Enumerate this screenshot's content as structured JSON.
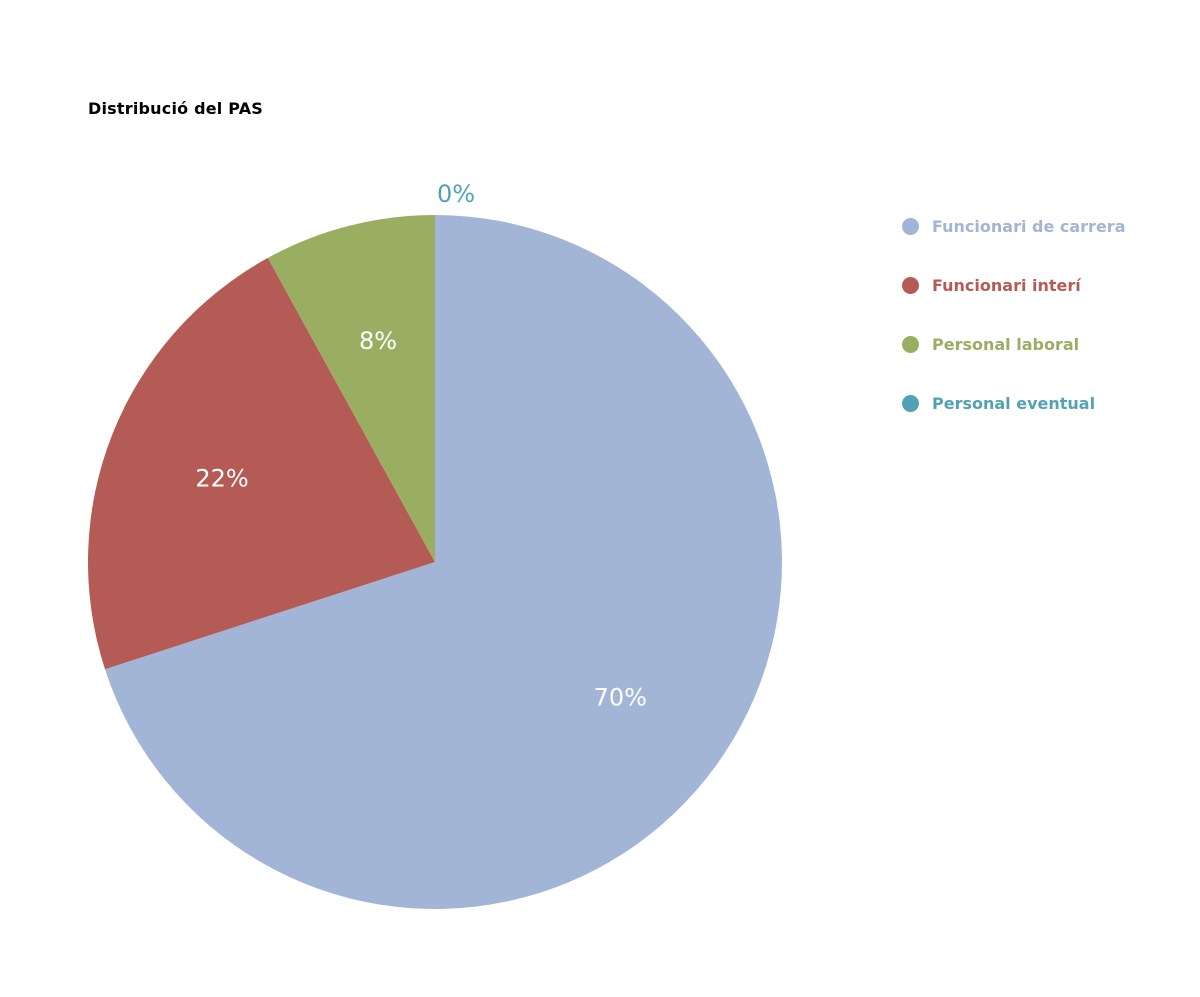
{
  "chart_data": {
    "type": "pie",
    "title": "Distribució del PAS",
    "categories": [
      "Funcionari de carrera",
      "Funcionari interí",
      "Personal laboral",
      "Personal eventual"
    ],
    "values": [
      70,
      22,
      8,
      0
    ],
    "labels": [
      "70%",
      "22%",
      "8%",
      "0%"
    ],
    "colors": [
      "#a2b5d6",
      "#b55b55",
      "#9aae62",
      "#52a2b4"
    ],
    "legend_position": "right"
  }
}
